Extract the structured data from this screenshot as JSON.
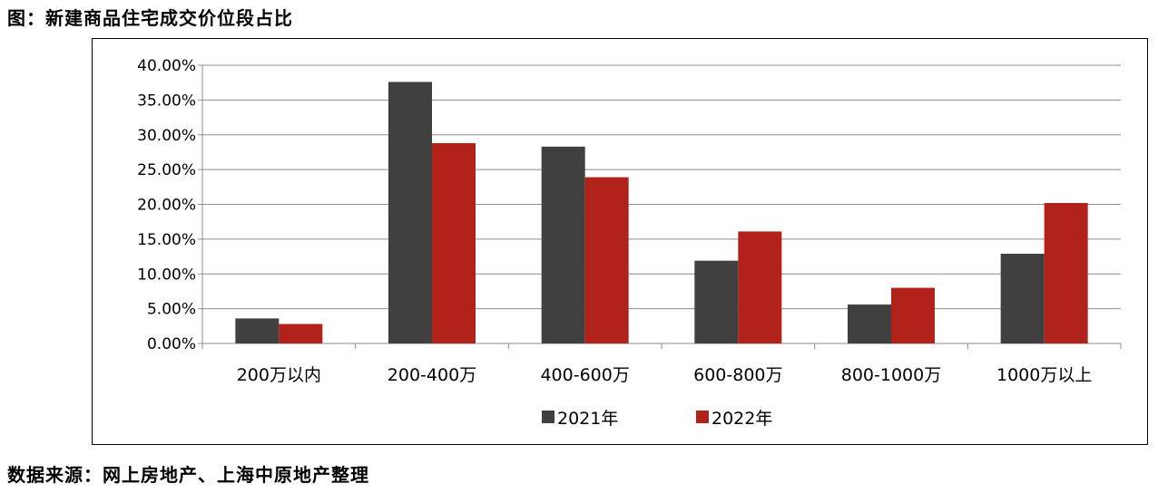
{
  "figure": {
    "title": "图：新建商品住宅成交价位段占比",
    "source": "数据来源：网上房地产、上海中原地产整理"
  },
  "chart_data": {
    "type": "bar",
    "title": "",
    "xlabel": "",
    "ylabel": "",
    "categories": [
      "200万以内",
      "200-400万",
      "400-600万",
      "600-800万",
      "800-1000万",
      "1000万以上"
    ],
    "series": [
      {
        "name": "2021年",
        "color": "#404040",
        "values": [
          3.6,
          37.6,
          28.3,
          11.9,
          5.6,
          12.9
        ]
      },
      {
        "name": "2022年",
        "color": "#B0221A",
        "values": [
          2.8,
          28.8,
          23.9,
          16.1,
          8.0,
          20.2
        ]
      }
    ],
    "ylim": [
      0,
      40
    ],
    "yticks": [
      "0.00%",
      "5.00%",
      "10.00%",
      "15.00%",
      "20.00%",
      "25.00%",
      "30.00%",
      "35.00%",
      "40.00%"
    ],
    "grid": true,
    "legend": "bottom-center"
  }
}
